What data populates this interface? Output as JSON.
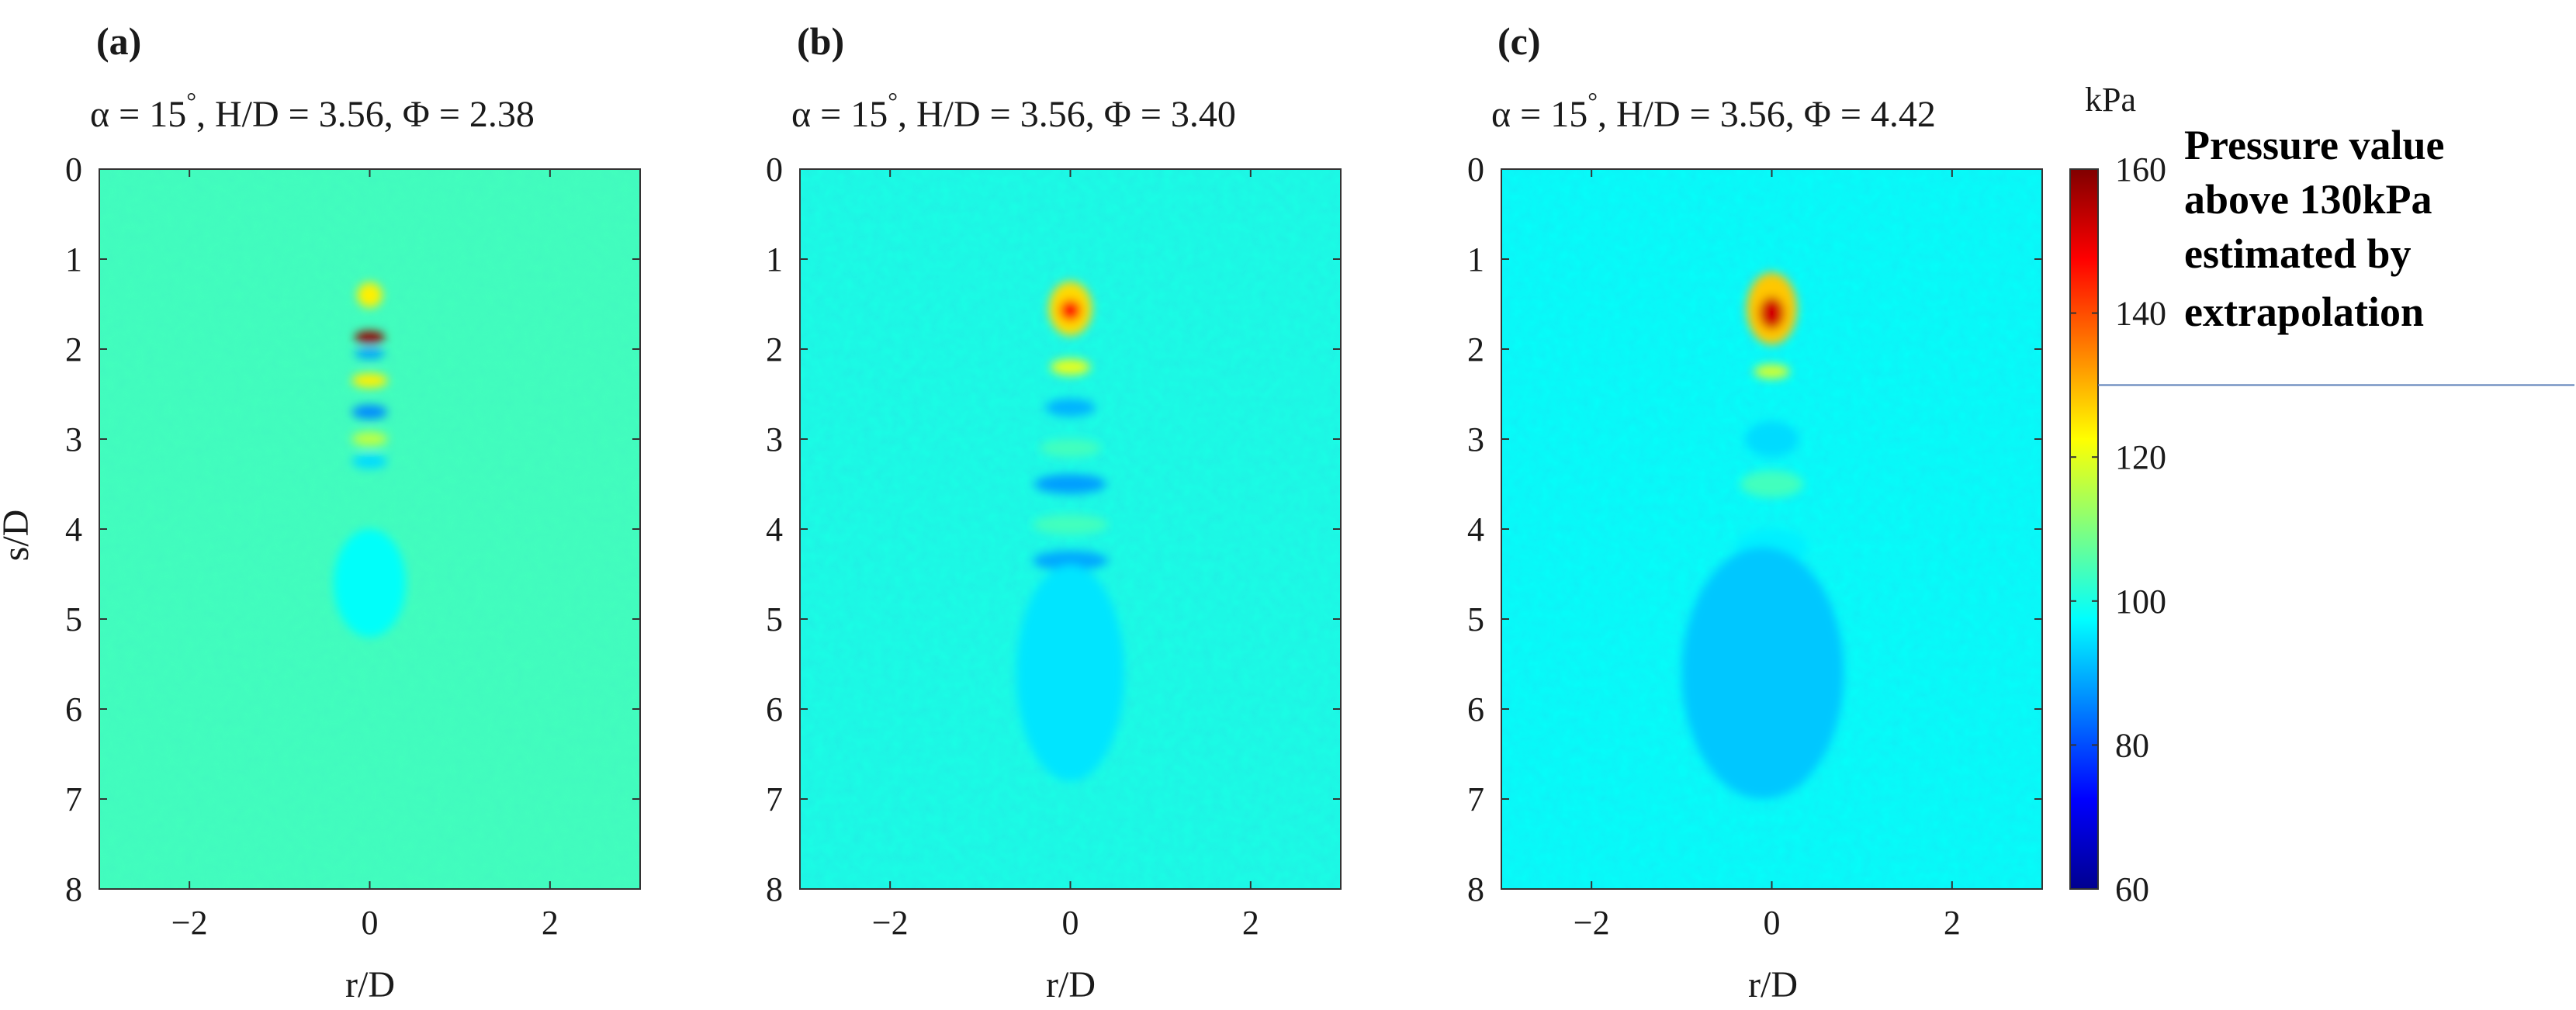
{
  "chart_data": [
    {
      "type": "heatmap",
      "panel_label": "(a)",
      "title": "α = 15°, H/D = 3.56, Φ = 2.38",
      "title_parts": {
        "alpha": "α = 15",
        "degree": "°",
        "rest": ", H/D = 3.56, Φ = 2.38"
      },
      "xlabel": "r/D",
      "ylabel": "s/D",
      "xlim": [
        -3,
        3
      ],
      "ylim": [
        0,
        8
      ],
      "y_inverted": true,
      "x_ticks": [
        {
          "value": -2,
          "label": "−2"
        },
        {
          "value": 0,
          "label": "0"
        },
        {
          "value": 2,
          "label": "2"
        }
      ],
      "y_ticks": [
        {
          "value": 0,
          "label": "0"
        },
        {
          "value": 1,
          "label": "1"
        },
        {
          "value": 2,
          "label": "2"
        },
        {
          "value": 3,
          "label": "3"
        },
        {
          "value": 4,
          "label": "4"
        },
        {
          "value": 5,
          "label": "5"
        },
        {
          "value": 6,
          "label": "6"
        },
        {
          "value": 7,
          "label": "7"
        },
        {
          "value": 8,
          "label": "8"
        }
      ],
      "background_kPa": 104,
      "features": [
        {
          "r": 0,
          "s": 1.4,
          "rr": 0.14,
          "rs": 0.14,
          "kPa": 124
        },
        {
          "r": 0,
          "s": 1.87,
          "rr": 0.17,
          "rs": 0.07,
          "kPa": 158
        },
        {
          "r": 0,
          "s": 2.05,
          "rr": 0.17,
          "rs": 0.06,
          "kPa": 88
        },
        {
          "r": 0,
          "s": 2.35,
          "rr": 0.2,
          "rs": 0.08,
          "kPa": 124
        },
        {
          "r": 0,
          "s": 2.7,
          "rr": 0.2,
          "rs": 0.08,
          "kPa": 86
        },
        {
          "r": 0,
          "s": 3.0,
          "rr": 0.2,
          "rs": 0.08,
          "kPa": 116
        },
        {
          "r": 0,
          "s": 3.25,
          "rr": 0.2,
          "rs": 0.08,
          "kPa": 94
        },
        {
          "r": 0,
          "s": 4.6,
          "rr": 0.4,
          "rs": 0.6,
          "kPa": 98
        }
      ]
    },
    {
      "type": "heatmap",
      "panel_label": "(b)",
      "title": "α = 15°, H/D = 3.56, Φ = 3.40",
      "title_parts": {
        "alpha": "α = 15",
        "degree": "°",
        "rest": ", H/D = 3.56, Φ = 3.40"
      },
      "xlabel": "r/D",
      "xlim": [
        -3,
        3
      ],
      "ylim": [
        0,
        8
      ],
      "y_inverted": true,
      "x_ticks": [
        {
          "value": -2,
          "label": "−2"
        },
        {
          "value": 0,
          "label": "0"
        },
        {
          "value": 2,
          "label": "2"
        }
      ],
      "y_ticks": [
        {
          "value": 0,
          "label": "0"
        },
        {
          "value": 1,
          "label": "1"
        },
        {
          "value": 2,
          "label": "2"
        },
        {
          "value": 3,
          "label": "3"
        },
        {
          "value": 4,
          "label": "4"
        },
        {
          "value": 5,
          "label": "5"
        },
        {
          "value": 6,
          "label": "6"
        },
        {
          "value": 7,
          "label": "7"
        },
        {
          "value": 8,
          "label": "8"
        }
      ],
      "background_kPa": 100,
      "features": [
        {
          "r": 0,
          "s": 1.55,
          "rr": 0.24,
          "rs": 0.3,
          "kPa": 126
        },
        {
          "r": 0,
          "s": 1.57,
          "rr": 0.12,
          "rs": 0.12,
          "kPa": 146
        },
        {
          "r": 0,
          "s": 2.2,
          "rr": 0.22,
          "rs": 0.09,
          "kPa": 120
        },
        {
          "r": 0,
          "s": 2.65,
          "rr": 0.28,
          "rs": 0.1,
          "kPa": 90
        },
        {
          "r": 0,
          "s": 3.1,
          "rr": 0.34,
          "rs": 0.1,
          "kPa": 104
        },
        {
          "r": 0,
          "s": 3.5,
          "rr": 0.4,
          "rs": 0.11,
          "kPa": 88
        },
        {
          "r": 0,
          "s": 3.95,
          "rr": 0.42,
          "rs": 0.11,
          "kPa": 104
        },
        {
          "r": 0,
          "s": 4.35,
          "rr": 0.42,
          "rs": 0.11,
          "kPa": 89
        },
        {
          "r": 0,
          "s": 4.8,
          "rr": 0.42,
          "rs": 0.11,
          "kPa": 104
        },
        {
          "r": 0,
          "s": 5.6,
          "rr": 0.6,
          "rs": 1.2,
          "kPa": 95
        }
      ]
    },
    {
      "type": "heatmap",
      "panel_label": "(c)",
      "title": "α = 15°, H/D = 3.56, Φ = 4.42",
      "title_parts": {
        "alpha": "α = 15",
        "degree": "°",
        "rest": ", H/D = 3.56, Φ = 4.42"
      },
      "xlabel": "r/D",
      "xlim": [
        -3,
        3
      ],
      "ylim": [
        0,
        8
      ],
      "y_inverted": true,
      "x_ticks": [
        {
          "value": -2,
          "label": "−2"
        },
        {
          "value": 0,
          "label": "0"
        },
        {
          "value": 2,
          "label": "2"
        }
      ],
      "y_ticks": [
        {
          "value": 0,
          "label": "0"
        },
        {
          "value": 1,
          "label": "1"
        },
        {
          "value": 2,
          "label": "2"
        },
        {
          "value": 3,
          "label": "3"
        },
        {
          "value": 4,
          "label": "4"
        },
        {
          "value": 5,
          "label": "5"
        },
        {
          "value": 6,
          "label": "6"
        },
        {
          "value": 7,
          "label": "7"
        },
        {
          "value": 8,
          "label": "8"
        }
      ],
      "background_kPa": 98,
      "features": [
        {
          "r": 0,
          "s": 1.55,
          "rr": 0.28,
          "rs": 0.4,
          "kPa": 128
        },
        {
          "r": 0,
          "s": 1.6,
          "rr": 0.14,
          "rs": 0.18,
          "kPa": 152
        },
        {
          "r": 0,
          "s": 2.25,
          "rr": 0.2,
          "rs": 0.08,
          "kPa": 118
        },
        {
          "r": 0,
          "s": 3.0,
          "rr": 0.3,
          "rs": 0.2,
          "kPa": 94
        },
        {
          "r": 0,
          "s": 3.5,
          "rr": 0.35,
          "rs": 0.15,
          "kPa": 104
        },
        {
          "r": 0,
          "s": 4.2,
          "rr": 0.4,
          "rs": 0.2,
          "kPa": 96
        },
        {
          "r": -0.1,
          "s": 5.6,
          "rr": 0.9,
          "rs": 1.4,
          "kPa": 92
        }
      ]
    }
  ],
  "colorbar": {
    "unit_label": "kPa",
    "range": [
      60,
      160
    ],
    "colormap": "jet",
    "ticks": [
      {
        "value": 60,
        "label": "60"
      },
      {
        "value": 80,
        "label": "80"
      },
      {
        "value": 100,
        "label": "100"
      },
      {
        "value": 120,
        "label": "120"
      },
      {
        "value": 140,
        "label": "140"
      },
      {
        "value": 160,
        "label": "160"
      }
    ],
    "threshold_kPa": 130,
    "threshold_line_color": "#5b7fb8"
  },
  "annotation": {
    "lines": [
      "Pressure value",
      "above 130kPa",
      "estimated by",
      "extrapolation"
    ]
  }
}
